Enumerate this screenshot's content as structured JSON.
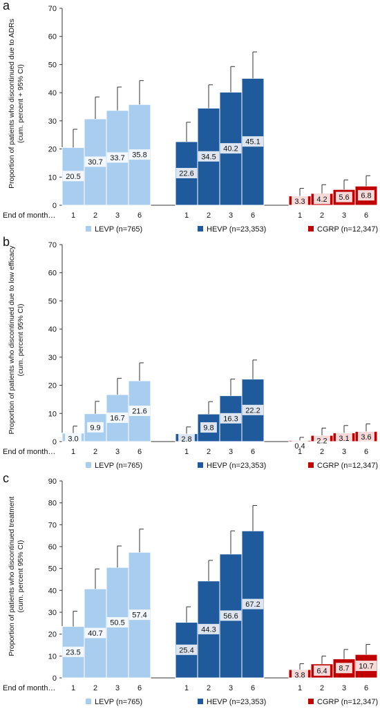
{
  "x_axis_prefix": "End of month…",
  "legend": [
    {
      "label": "LEVP (n=765)",
      "color": "#a9cdef"
    },
    {
      "label": "HEVP (n=23,353)",
      "color": "#1f5b9c"
    },
    {
      "label": "CGRP (n=12,347)",
      "color": "#c00000"
    }
  ],
  "chart_data": [
    {
      "type": "bar",
      "panel_label": "a",
      "ylabel_line1": "Proportion of patients who discontinued due to ADRs",
      "ylabel_line2": "(cum. percent + 95% CI)",
      "ylim": [
        0,
        70
      ],
      "yticks": [
        0,
        10,
        20,
        30,
        40,
        50,
        60,
        70
      ],
      "categories": [
        "1",
        "2",
        "3",
        "6"
      ],
      "series": [
        {
          "name": "LEVP (n=765)",
          "values": [
            20.5,
            30.7,
            33.7,
            35.8
          ],
          "ci_upper": [
            27,
            38.5,
            42,
            44.3
          ]
        },
        {
          "name": "HEVP (n=23,353)",
          "values": [
            22.6,
            34.5,
            40.2,
            45.1
          ],
          "ci_upper": [
            29.5,
            42.8,
            49.3,
            54.5
          ]
        },
        {
          "name": "CGRP (n=12,347)",
          "values": [
            3.3,
            4.2,
            5.6,
            6.8
          ],
          "ci_upper": [
            6,
            7.3,
            9,
            10.5
          ]
        }
      ]
    },
    {
      "type": "bar",
      "panel_label": "b",
      "ylabel_line1": "Proportion of patients who discontinued due to low efficacy",
      "ylabel_line2": "(cum. percent 95% CI)",
      "ylim": [
        0,
        70
      ],
      "yticks": [
        0,
        10,
        20,
        30,
        40,
        50,
        60,
        70
      ],
      "categories": [
        "1",
        "2",
        "3",
        "6"
      ],
      "series": [
        {
          "name": "LEVP (n=765)",
          "values": [
            3.0,
            9.9,
            16.7,
            21.6
          ],
          "ci_upper": [
            5.5,
            14.3,
            22.5,
            28
          ]
        },
        {
          "name": "HEVP (n=23,353)",
          "values": [
            2.8,
            9.8,
            16.3,
            22.2
          ],
          "ci_upper": [
            5.2,
            14.2,
            22.2,
            29
          ]
        },
        {
          "name": "CGRP (n=12,347)",
          "values": [
            0.4,
            2.2,
            3.1,
            3.6
          ],
          "ci_upper": [
            1.5,
            4.8,
            5.7,
            6.3
          ]
        }
      ]
    },
    {
      "type": "bar",
      "panel_label": "c",
      "ylabel_line1": "Proportion of patients who discontinued treatment",
      "ylabel_line2": "(cum. percent 95% CI)",
      "ylim": [
        0,
        90
      ],
      "yticks": [
        0,
        10,
        20,
        30,
        40,
        50,
        60,
        70,
        80,
        90
      ],
      "categories": [
        "1",
        "2",
        "3",
        "6"
      ],
      "series": [
        {
          "name": "LEVP (n=765)",
          "values": [
            23.5,
            40.7,
            50.5,
            57.4
          ],
          "ci_upper": [
            30.5,
            49.8,
            60.3,
            68
          ]
        },
        {
          "name": "HEVP (n=23,353)",
          "values": [
            25.4,
            44.3,
            56.6,
            67.2
          ],
          "ci_upper": [
            32.5,
            53.7,
            67.2,
            78.8
          ]
        },
        {
          "name": "CGRP (n=12,347)",
          "values": [
            3.8,
            6.4,
            8.7,
            10.7
          ],
          "ci_upper": [
            6.5,
            10,
            13,
            15.3
          ]
        }
      ]
    }
  ]
}
